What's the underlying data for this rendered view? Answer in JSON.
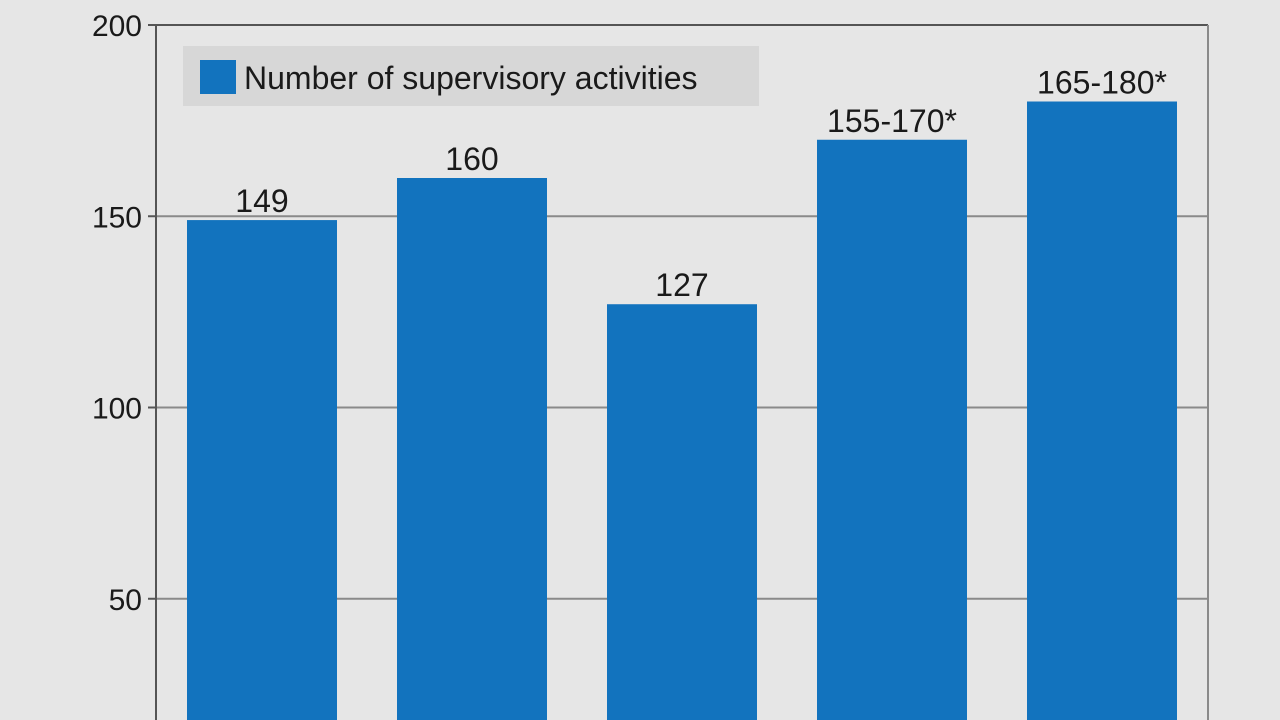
{
  "chart_data": {
    "type": "bar",
    "title": "",
    "xlabel": "",
    "ylabel": "",
    "ylim": [
      0,
      200
    ],
    "yticks": [
      50,
      100,
      150,
      200
    ],
    "grid": true,
    "legend_position": "top-left",
    "series": [
      {
        "name": "Number of supervisory activities",
        "values": [
          149,
          160,
          127,
          170,
          180
        ],
        "labels": [
          "149",
          "160",
          "127",
          "155-170*",
          "165-180*"
        ]
      }
    ]
  },
  "colors": {
    "bar": "#1273be",
    "background": "#e6e6e6",
    "gridline": "#8a8a8a",
    "axis": "#555555",
    "legend_box": "#d7d7d7"
  }
}
